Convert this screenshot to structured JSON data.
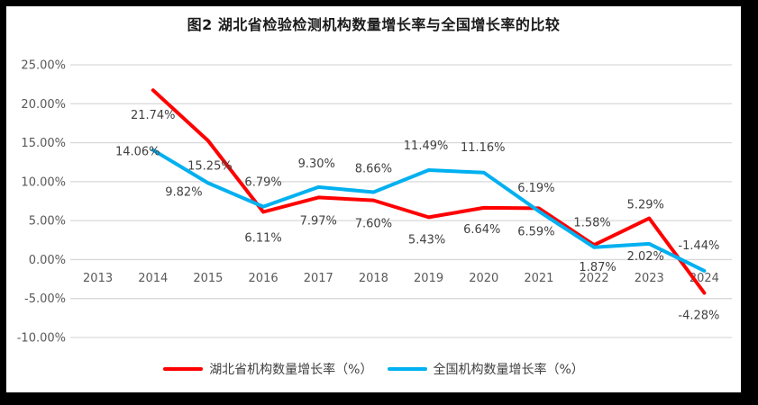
{
  "title": "图2  湖北省检验检测机构数量增长率与全国增长率的比较",
  "colors": {
    "hubei_line": "#FF0000",
    "national_line": "#00B0F0",
    "gridline": "#D9D9D9",
    "axis_text": "#595959",
    "data_label_text": "#404040",
    "frame": "#000000",
    "plot_background": "#FFFFFF"
  },
  "chart_data": {
    "type": "line",
    "title": "图2  湖北省检验检测机构数量增长率与全国增长率的比较",
    "categories": [
      "2013",
      "2014",
      "2015",
      "2016",
      "2017",
      "2018",
      "2019",
      "2020",
      "2021",
      "2022",
      "2023",
      "2024"
    ],
    "xlabel": "",
    "ylabel": "",
    "ylim": [
      -10,
      25
    ],
    "grid": true,
    "legend_position": "bottom",
    "y_ticks": [
      {
        "value": 25,
        "label": "25.00%"
      },
      {
        "value": 20,
        "label": "20.00%"
      },
      {
        "value": 15,
        "label": "15.00%"
      },
      {
        "value": 10,
        "label": "10.00%"
      },
      {
        "value": 5,
        "label": "5.00%"
      },
      {
        "value": 0,
        "label": "0.00%"
      },
      {
        "value": -5,
        "label": "-5.00%"
      },
      {
        "value": -10,
        "label": "-10.00%"
      }
    ],
    "series": [
      {
        "name": "湖北省机构数量增长率（%）",
        "color": "#FF0000",
        "values": [
          null,
          21.74,
          15.25,
          6.11,
          7.97,
          7.6,
          5.43,
          6.64,
          6.59,
          1.87,
          5.29,
          -4.28
        ],
        "labels": [
          null,
          "21.74%",
          "15.25%",
          "6.11%",
          "7.97%",
          "7.60%",
          "5.43%",
          "6.64%",
          "6.59%",
          "1.87%",
          "5.29%",
          "-4.28%"
        ],
        "label_offsets": [
          null,
          [
            0,
            32
          ],
          [
            2,
            32
          ],
          [
            0,
            33
          ],
          [
            0,
            30
          ],
          [
            0,
            30
          ],
          [
            -2,
            29
          ],
          [
            -2,
            28
          ],
          [
            -3,
            30
          ],
          [
            4,
            29
          ],
          [
            -4,
            -11
          ],
          [
            -6,
            29
          ]
        ]
      },
      {
        "name": "全国机构数量增长率（%）",
        "color": "#00B0F0",
        "values": [
          null,
          14.06,
          9.82,
          6.79,
          9.3,
          8.66,
          11.49,
          11.16,
          6.19,
          1.58,
          2.02,
          -1.44
        ],
        "labels": [
          null,
          "14.06%",
          "9.82%",
          "6.79%",
          "9.30%",
          "8.66%",
          "11.49%",
          "11.16%",
          "6.19%",
          "1.58%",
          "2.02%",
          "-1.44%"
        ],
        "label_offsets": [
          null,
          [
            -17,
            6
          ],
          [
            -27,
            14
          ],
          [
            0,
            -23
          ],
          [
            -2,
            -22
          ],
          [
            0,
            -22
          ],
          [
            -3,
            -23
          ],
          [
            -1,
            -24
          ],
          [
            -3,
            -22
          ],
          [
            -2,
            -23
          ],
          [
            -4,
            18
          ],
          [
            -6,
            -24
          ]
        ]
      }
    ]
  },
  "legend": {
    "items": [
      {
        "label": "湖北省机构数量增长率（%）"
      },
      {
        "label": "全国机构数量增长率（%）"
      }
    ]
  }
}
